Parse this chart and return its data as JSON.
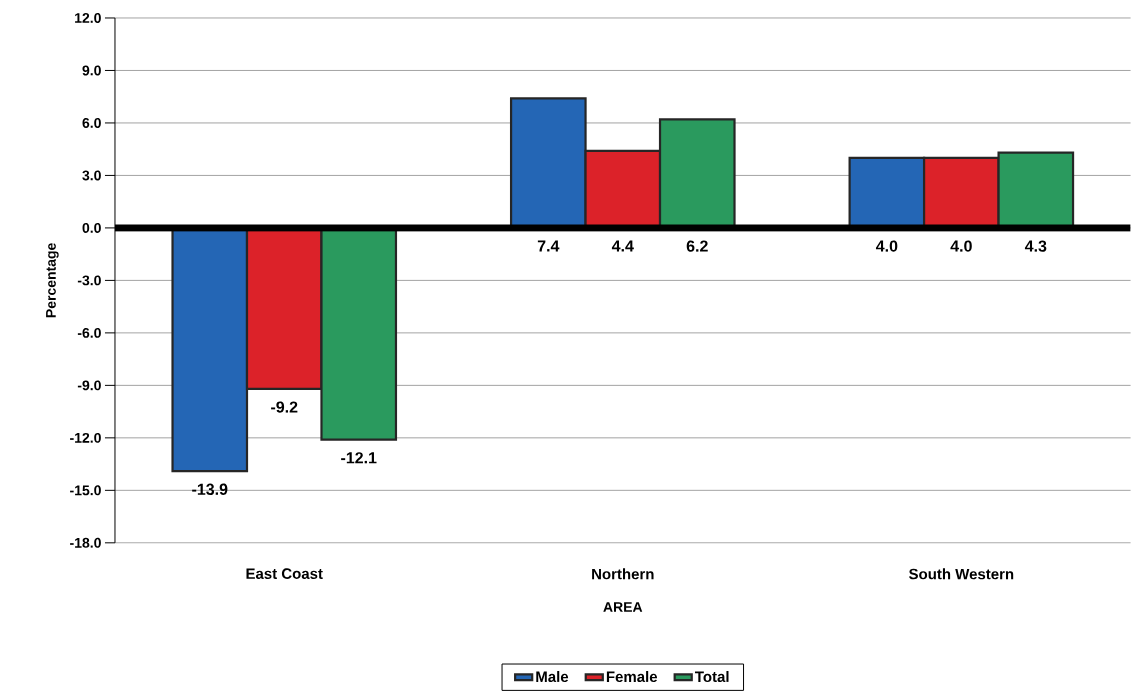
{
  "chart_data": {
    "type": "bar",
    "xlabel": "AREA",
    "ylabel": "Percentage",
    "categories": [
      "East  Coast",
      "Northern",
      "South Western"
    ],
    "series": [
      {
        "name": "Male",
        "color": "#2466b5",
        "values": [
          -13.9,
          7.4,
          4.0
        ],
        "value_labels": [
          "-13.9",
          "7.4",
          "4.0"
        ]
      },
      {
        "name": "Female",
        "color": "#dc2229",
        "values": [
          -9.2,
          4.4,
          4.0
        ],
        "value_labels": [
          "-9.2",
          "4.4",
          "4.0"
        ]
      },
      {
        "name": "Total",
        "color": "#2a9a5e",
        "values": [
          -12.1,
          6.2,
          4.3
        ],
        "value_labels": [
          "-12.1",
          "6.2",
          "4.3"
        ]
      }
    ],
    "ylim": [
      -18,
      12
    ],
    "yticks": [
      {
        "value": -18,
        "label": "-18.0"
      },
      {
        "value": -15,
        "label": "-15.0"
      },
      {
        "value": -12,
        "label": "-12.0"
      },
      {
        "value": -9,
        "label": "-9.0"
      },
      {
        "value": -6,
        "label": "-6.0"
      },
      {
        "value": -3,
        "label": "-3.0"
      },
      {
        "value": 0,
        "label": "0.0"
      },
      {
        "value": 3,
        "label": "3.0"
      },
      {
        "value": 6,
        "label": "6.0"
      },
      {
        "value": 9,
        "label": "9.0"
      },
      {
        "value": 12,
        "label": "12.0"
      }
    ],
    "grid": "y",
    "legend": "bottom"
  }
}
